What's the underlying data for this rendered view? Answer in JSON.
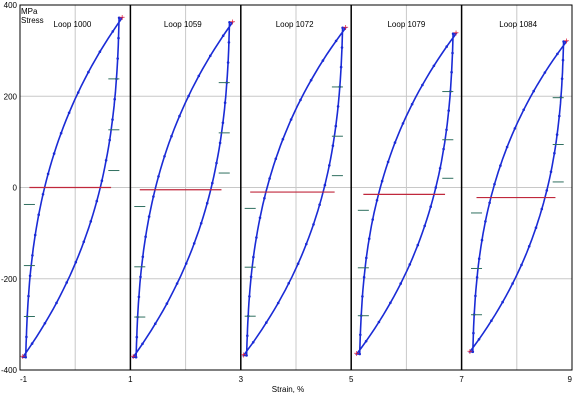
{
  "chart_data": {
    "type": "line",
    "title": "",
    "ylabel_unit": "MPa",
    "ylabel": "Stress",
    "xlabel": "Strain, %",
    "ylim": [
      -400,
      400
    ],
    "xlim": [
      -1,
      9
    ],
    "y_ticks": [
      "400",
      "200",
      "0",
      "-200",
      "-400"
    ],
    "x_ticks": [
      "-1",
      "1",
      "3",
      "5",
      "7",
      "9"
    ],
    "grid": true,
    "colors": {
      "loop": "#1a2bd6",
      "mean_line": "#c0283c",
      "marker": "#e0203c",
      "fit_line": "#2f6f5f",
      "divider": "#000000",
      "grid": "#c8c8c8"
    },
    "series": [
      {
        "name": "Loop 1000",
        "x_min": -0.95,
        "x_max": 0.85,
        "stress_max": 372,
        "stress_min": -372,
        "mean_stress": 0
      },
      {
        "name": "Loop 1059",
        "x_min": 1.05,
        "x_max": 2.85,
        "stress_max": 362,
        "stress_min": -372,
        "mean_stress": -5
      },
      {
        "name": "Loop 1072",
        "x_min": 3.05,
        "x_max": 4.9,
        "stress_max": 350,
        "stress_min": -368,
        "mean_stress": -10
      },
      {
        "name": "Loop 1079",
        "x_min": 5.1,
        "x_max": 6.9,
        "stress_max": 337,
        "stress_min": -365,
        "mean_stress": -15
      },
      {
        "name": "Loop 1084",
        "x_min": 7.15,
        "x_max": 8.9,
        "stress_max": 320,
        "stress_min": -360,
        "mean_stress": -22
      }
    ]
  }
}
